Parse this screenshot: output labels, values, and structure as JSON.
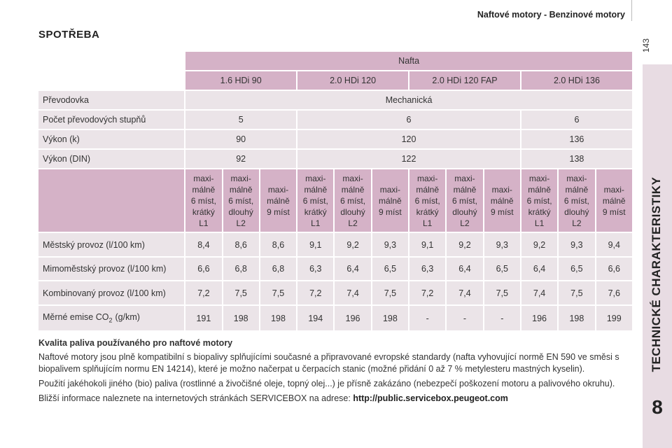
{
  "header": {
    "section": "Naftové motory - Benzinové motory",
    "page_number": "143"
  },
  "sidebar": {
    "chapter": "TECHNICKÉ CHARAKTERISTIKY",
    "chapter_number": "8"
  },
  "title": "SPOTŘEBA",
  "table": {
    "fuel": "Nafta",
    "engines": [
      "1.6 HDi 90",
      "2.0 HDi 120",
      "2.0 HDi 120 FAP",
      "2.0 HDi 136"
    ],
    "specs": [
      {
        "label": "Převodovka",
        "values": [
          "Mechanická"
        ]
      },
      {
        "label": "Počet převodových stupňů",
        "values": [
          "5",
          "6",
          "6"
        ]
      },
      {
        "label": "Výkon (k)",
        "values": [
          "90",
          "120",
          "136"
        ]
      },
      {
        "label": "Výkon (DIN)",
        "values": [
          "92",
          "122",
          "138"
        ]
      }
    ],
    "variants": [
      [
        "maxi-",
        "málně",
        "6 míst,",
        "krátký",
        "L1"
      ],
      [
        "maxi-",
        "málně",
        "6 míst,",
        "dlouhý",
        "L2"
      ],
      [
        "maxi-",
        "málně",
        "9 míst"
      ],
      [
        "maxi-",
        "málně",
        "6 míst,",
        "krátký",
        "L1"
      ],
      [
        "maxi-",
        "málně",
        "6 míst,",
        "dlouhý",
        "L2"
      ],
      [
        "maxi-",
        "málně",
        "9 míst"
      ],
      [
        "maxi-",
        "málně",
        "6 míst,",
        "krátký",
        "L1"
      ],
      [
        "maxi-",
        "málně",
        "6 míst,",
        "dlouhý",
        "L2"
      ],
      [
        "maxi-",
        "málně",
        "9 míst"
      ],
      [
        "maxi-",
        "málně",
        "6 míst,",
        "krátký",
        "L1"
      ],
      [
        "maxi-",
        "málně",
        "6 míst,",
        "dlouhý",
        "L2"
      ],
      [
        "maxi-",
        "málně",
        "9 míst"
      ]
    ],
    "consumption": [
      {
        "label": "Městský provoz (l/100 km)",
        "values": [
          "8,4",
          "8,6",
          "8,6",
          "9,1",
          "9,2",
          "9,3",
          "9,1",
          "9,2",
          "9,3",
          "9,2",
          "9,3",
          "9,4"
        ]
      },
      {
        "label": "Mimoměstský provoz (l/100 km)",
        "values": [
          "6,6",
          "6,8",
          "6,8",
          "6,3",
          "6,4",
          "6,5",
          "6,3",
          "6,4",
          "6,5",
          "6,4",
          "6,5",
          "6,6"
        ]
      },
      {
        "label": "Kombinovaný provoz (l/100 km)",
        "values": [
          "7,2",
          "7,5",
          "7,5",
          "7,2",
          "7,4",
          "7,5",
          "7,2",
          "7,4",
          "7,5",
          "7,4",
          "7,5",
          "7,6"
        ]
      }
    ],
    "emissions": {
      "label": "Měrné emise CO",
      "subscript": "2",
      "unit": "(g/km)",
      "values": [
        "191",
        "198",
        "198",
        "194",
        "196",
        "198",
        "-",
        "-",
        "-",
        "196",
        "198",
        "199"
      ]
    }
  },
  "notes": {
    "heading": "Kvalita paliva používaného pro naftové motory",
    "paragraphs": [
      "Naftové motory jsou plně kompatibilní s biopalivy splňujícími současné a připravované evropské standardy (nafta vyhovující normě EN 590 ve směsi s biopalivem splňujícím normu EN 14214), které je možno načerpat u čerpacích stanic (možné přidání 0 až 7 % metylesteru mastných kyselin).",
      "Použití jakéhokoli jiného (bio) paliva (rostlinné a živočišné oleje, topný olej...) je přísně zakázáno (nebezpečí poškození motoru a palivového okruhu)."
    ],
    "info_text": "Bližší informace naleznete na internetových stránkách SERVICEBOX na adrese:",
    "info_link": "http://public.servicebox.peugeot.com"
  }
}
